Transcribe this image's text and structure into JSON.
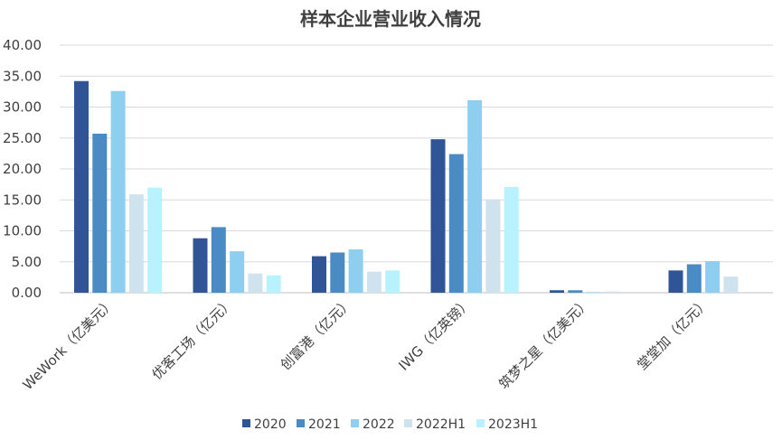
{
  "chart_data": {
    "type": "bar",
    "title": "样本企业营业收入情况",
    "categories": [
      "WeWork（亿美元）",
      "优客工场（亿元）",
      "创富港（亿元）",
      "IWG（亿英镑）",
      "筑梦之星（亿美元）",
      "堂堂加（亿元）"
    ],
    "series": [
      {
        "name": "2020",
        "color": "#2f5597",
        "values": [
          34.2,
          8.8,
          5.9,
          24.8,
          0.4,
          3.6
        ]
      },
      {
        "name": "2021",
        "color": "#4a8bc4",
        "values": [
          25.7,
          10.6,
          6.5,
          22.4,
          0.4,
          4.6
        ]
      },
      {
        "name": "2022",
        "color": "#8ecfef",
        "values": [
          32.6,
          6.7,
          7.0,
          31.1,
          0.1,
          5.1
        ]
      },
      {
        "name": "2022H1",
        "color": "#cfe3ef",
        "values": [
          15.9,
          3.1,
          3.4,
          15.1,
          0.2,
          2.6
        ]
      },
      {
        "name": "2023H1",
        "color": "#b8f2ff",
        "values": [
          17.0,
          2.8,
          3.6,
          17.1,
          null,
          null
        ]
      }
    ],
    "yticks": [
      "0.00",
      "5.00",
      "10.00",
      "15.00",
      "20.00",
      "25.00",
      "30.00",
      "35.00",
      "40.00"
    ],
    "ylim": [
      0,
      40
    ],
    "grid": true,
    "legend": "bottom",
    "xlabel": "",
    "ylabel": ""
  }
}
